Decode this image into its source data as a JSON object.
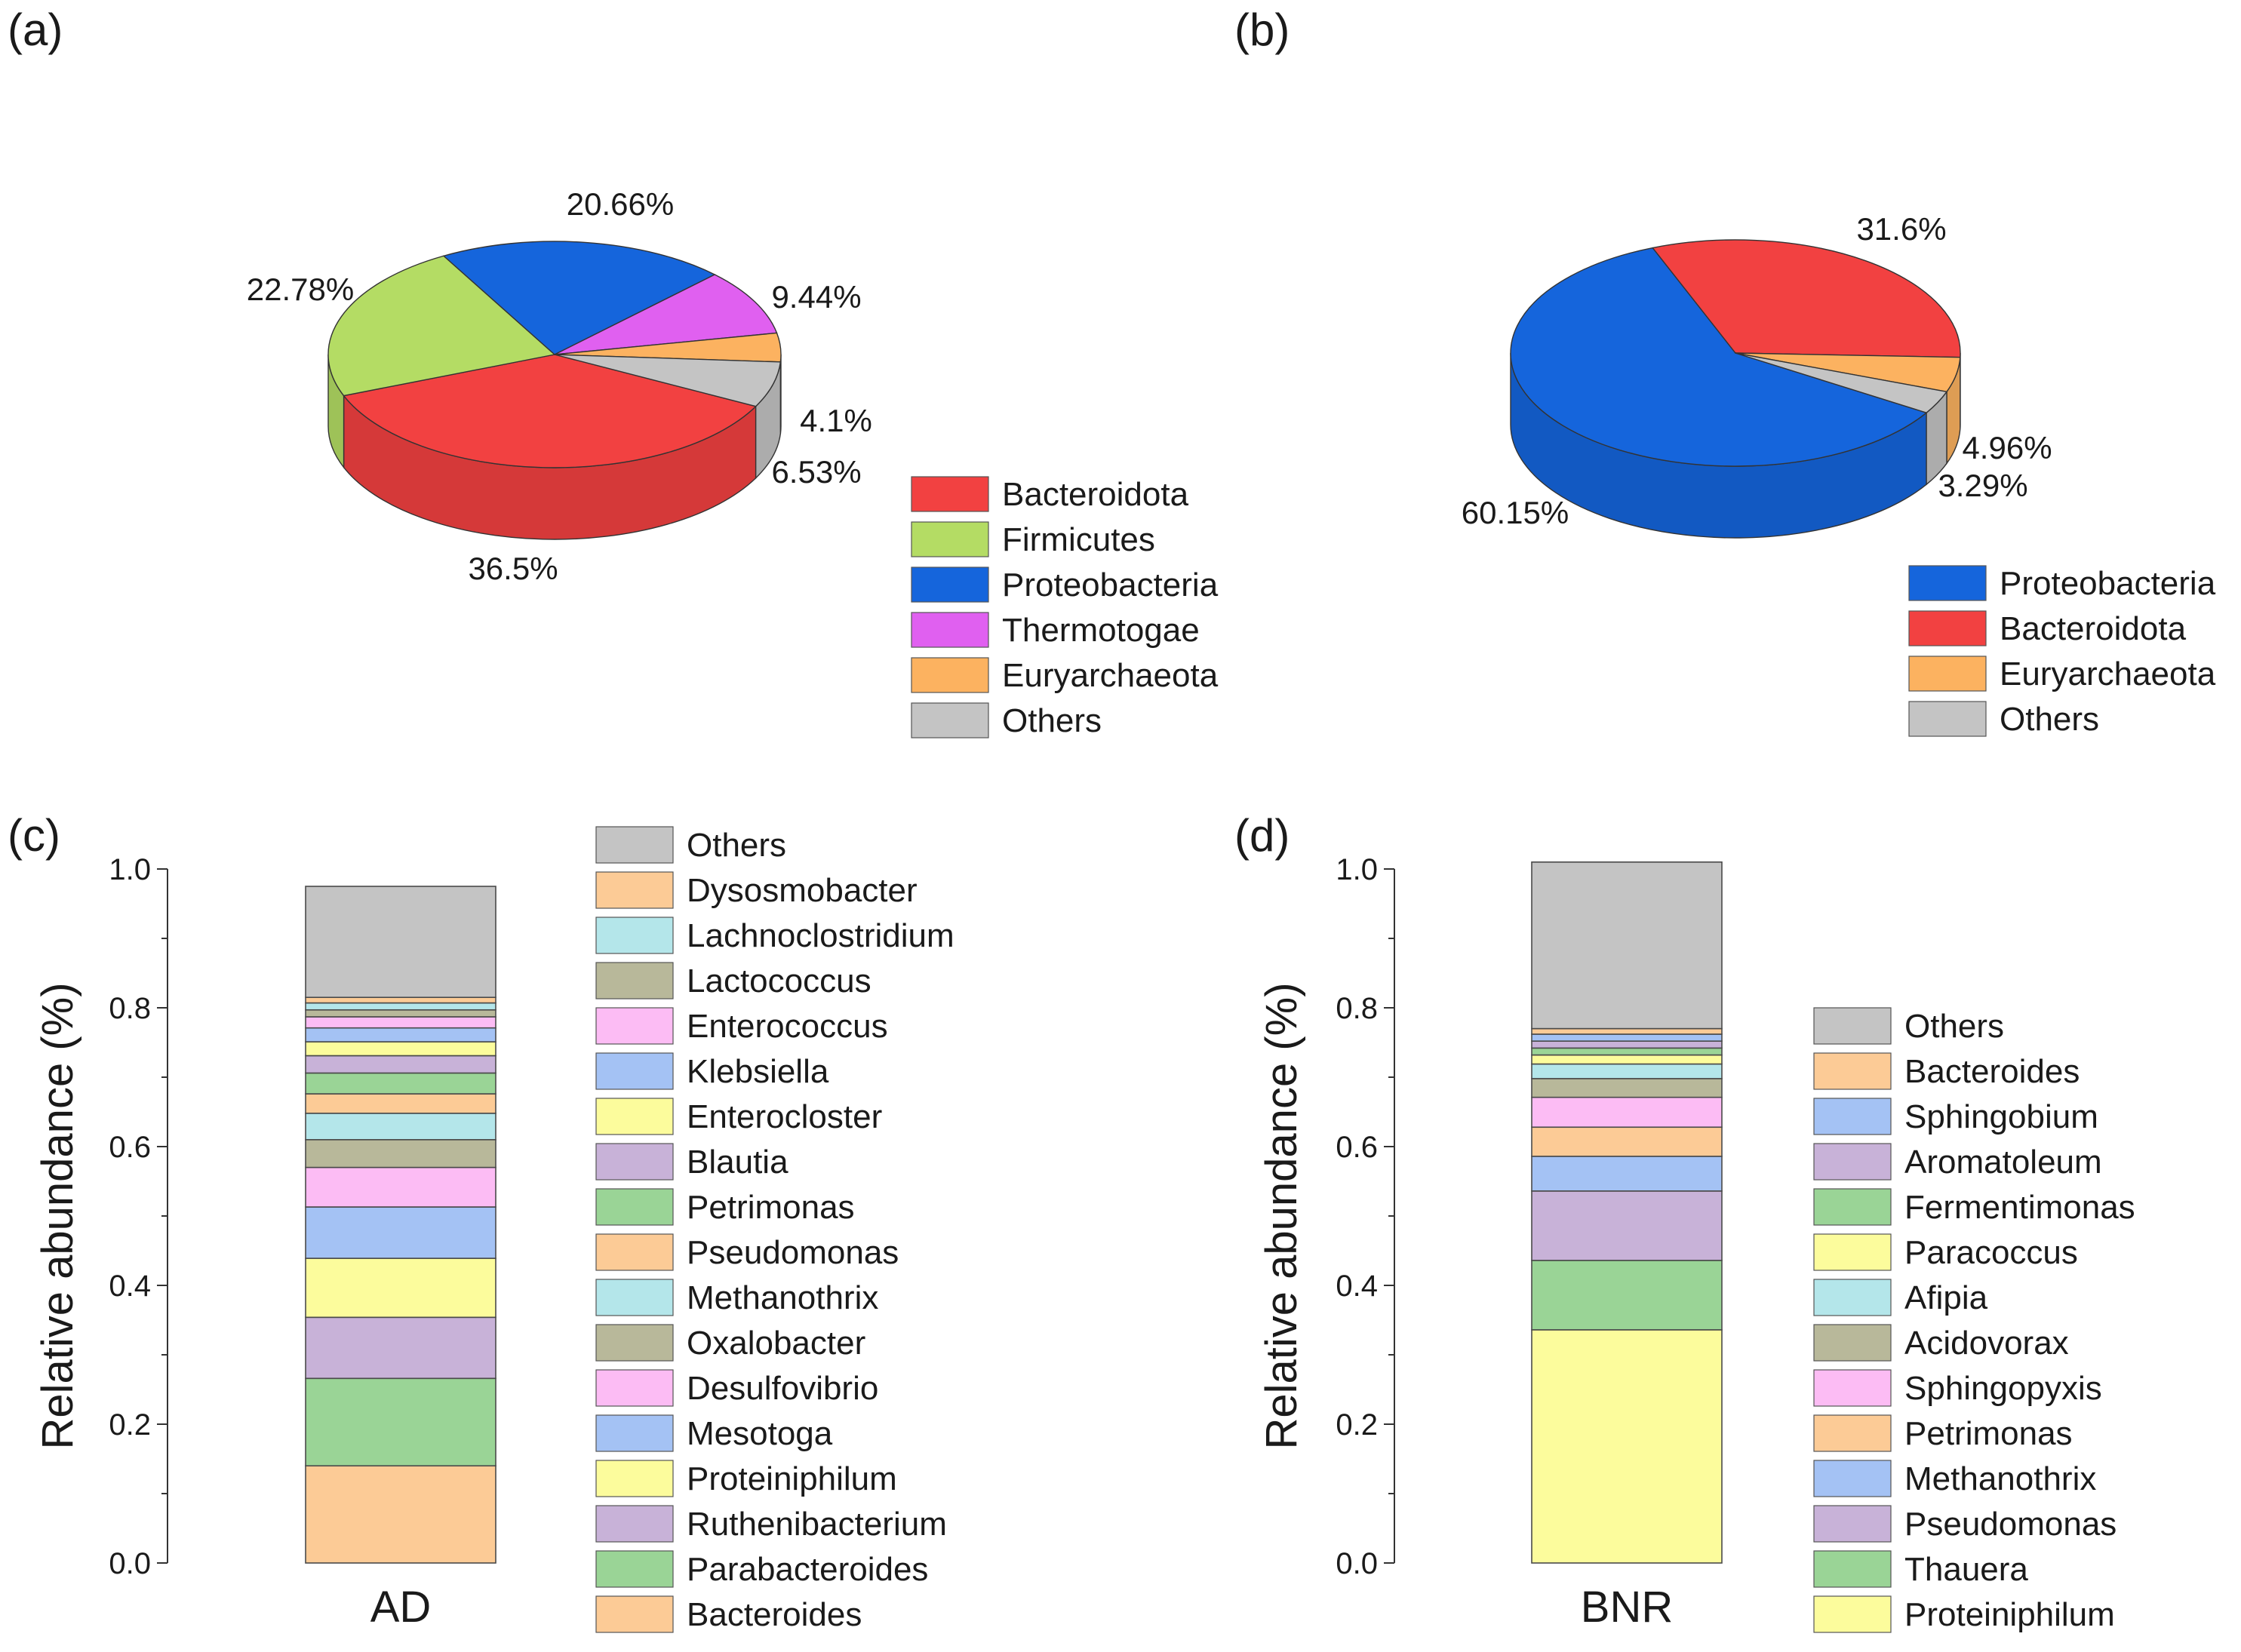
{
  "chart_data": [
    {
      "panel": "(a)",
      "type": "pie",
      "style": "3d",
      "slices": [
        {
          "label": "Bacteroidota",
          "value": 36.5,
          "value_label": "36.5%",
          "color": "#f24141"
        },
        {
          "label": "Firmicutes",
          "value": 22.78,
          "value_label": "22.78%",
          "color": "#b4dc64"
        },
        {
          "label": "Proteobacteria",
          "value": 20.66,
          "value_label": "20.66%",
          "color": "#1565dc"
        },
        {
          "label": "Thermotogae",
          "value": 9.44,
          "value_label": "9.44%",
          "color": "#e060f0"
        },
        {
          "label": "Euryarchaeota",
          "value": 4.1,
          "value_label": "4.1%",
          "color": "#fcb260"
        },
        {
          "label": "Others",
          "value": 6.53,
          "value_label": "6.53%",
          "color": "#c4c4c4"
        }
      ]
    },
    {
      "panel": "(b)",
      "type": "pie",
      "style": "3d",
      "slices": [
        {
          "label": "Proteobacteria",
          "value": 60.15,
          "value_label": "60.15%",
          "color": "#1565dc"
        },
        {
          "label": "Bacteroidota",
          "value": 31.6,
          "value_label": "31.6%",
          "color": "#f24141"
        },
        {
          "label": "Euryarchaeota",
          "value": 4.96,
          "value_label": "4.96%",
          "color": "#fcb260"
        },
        {
          "label": "Others",
          "value": 3.29,
          "value_label": "3.29%",
          "color": "#c4c4c4"
        }
      ]
    },
    {
      "panel": "(c)",
      "type": "bar",
      "stacked": true,
      "categories": [
        "AD"
      ],
      "ylabel": "Relative abundance (%)",
      "ylim": [
        0,
        1.0
      ],
      "yticks": [
        "0.0",
        "0.2",
        "0.4",
        "0.6",
        "0.8",
        "1.0"
      ],
      "series": [
        {
          "name": "Bacteroides",
          "values": [
            0.14
          ],
          "color": "#fccb96"
        },
        {
          "name": "Parabacteroides",
          "values": [
            0.126
          ],
          "color": "#9ad496"
        },
        {
          "name": "Ruthenibacterium",
          "values": [
            0.088
          ],
          "color": "#c8b2d8"
        },
        {
          "name": "Proteiniphilum",
          "values": [
            0.085
          ],
          "color": "#fcfc9c"
        },
        {
          "name": "Mesotoga",
          "values": [
            0.074
          ],
          "color": "#a4c2f4"
        },
        {
          "name": "Desulfovibrio",
          "values": [
            0.057
          ],
          "color": "#fcbcf4"
        },
        {
          "name": "Oxalobacter",
          "values": [
            0.04
          ],
          "color": "#b8b89a"
        },
        {
          "name": "Methanothrix",
          "values": [
            0.038
          ],
          "color": "#b4e6ea"
        },
        {
          "name": "Pseudomonas",
          "values": [
            0.028
          ],
          "color": "#fccb96"
        },
        {
          "name": "Petrimonas",
          "values": [
            0.03
          ],
          "color": "#9ad496"
        },
        {
          "name": "Blautia",
          "values": [
            0.025
          ],
          "color": "#c8b2d8"
        },
        {
          "name": "Enterocloster",
          "values": [
            0.02
          ],
          "color": "#fcfc9c"
        },
        {
          "name": "Klebsiella",
          "values": [
            0.02
          ],
          "color": "#a4c2f4"
        },
        {
          "name": "Enterococcus",
          "values": [
            0.016
          ],
          "color": "#fcbcf4"
        },
        {
          "name": "Lactococcus",
          "values": [
            0.01
          ],
          "color": "#b8b89a"
        },
        {
          "name": "Lachnoclostridium",
          "values": [
            0.01
          ],
          "color": "#b4e6ea"
        },
        {
          "name": "Dysosmobacter",
          "values": [
            0.008
          ],
          "color": "#fccb96"
        },
        {
          "name": "Others",
          "values": [
            0.16
          ],
          "color": "#c4c4c4"
        }
      ]
    },
    {
      "panel": "(d)",
      "type": "bar",
      "stacked": true,
      "categories": [
        "BNR"
      ],
      "ylabel": "Relative abundance (%)",
      "ylim": [
        0,
        1.0
      ],
      "yticks": [
        "0.0",
        "0.2",
        "0.4",
        "0.6",
        "0.8",
        "1.0"
      ],
      "series": [
        {
          "name": "Proteiniphilum",
          "values": [
            0.336
          ],
          "color": "#fcfc9c"
        },
        {
          "name": "Thauera",
          "values": [
            0.1
          ],
          "color": "#9ad496"
        },
        {
          "name": "Pseudomonas",
          "values": [
            0.1
          ],
          "color": "#c8b2d8"
        },
        {
          "name": "Methanothrix",
          "values": [
            0.05
          ],
          "color": "#a4c2f4"
        },
        {
          "name": "Petrimonas",
          "values": [
            0.042
          ],
          "color": "#fccb96"
        },
        {
          "name": "Sphingopyxis",
          "values": [
            0.043
          ],
          "color": "#fcbcf4"
        },
        {
          "name": "Acidovorax",
          "values": [
            0.027
          ],
          "color": "#b8b89a"
        },
        {
          "name": "Afipia",
          "values": [
            0.021
          ],
          "color": "#b4e6ea"
        },
        {
          "name": "Paracoccus",
          "values": [
            0.013
          ],
          "color": "#fcfc9c"
        },
        {
          "name": "Fermentimonas",
          "values": [
            0.01
          ],
          "color": "#9ad496"
        },
        {
          "name": "Aromatoleum",
          "values": [
            0.01
          ],
          "color": "#c8b2d8"
        },
        {
          "name": "Sphingobium",
          "values": [
            0.01
          ],
          "color": "#a4c2f4"
        },
        {
          "name": "Bacteroides",
          "values": [
            0.008
          ],
          "color": "#fccb96"
        },
        {
          "name": "Others",
          "values": [
            0.24
          ],
          "color": "#c4c4c4"
        }
      ]
    }
  ]
}
